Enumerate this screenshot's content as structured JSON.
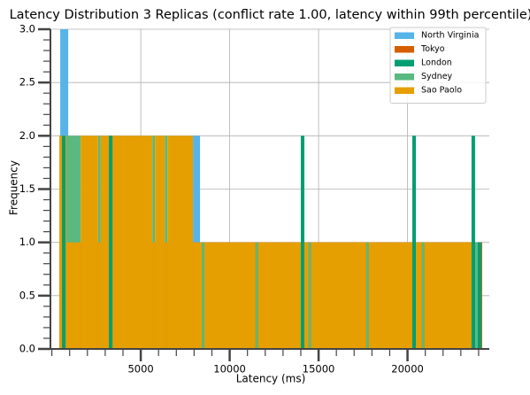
{
  "chart_data": {
    "type": "histogram",
    "title": "Latency Distribution 3 Replicas (conflict rate 1.00, latency within 99th percentile)",
    "x_label": "Latency (ms)",
    "y_label": "Frequency",
    "xlim": [
      -80,
      24600
    ],
    "ylim": [
      0,
      3
    ],
    "xticks": [
      5000,
      10000,
      15000,
      20000
    ],
    "yticks": [
      {
        "value": 0,
        "label": "0.0"
      },
      {
        "value": 0.5,
        "label": "0.5"
      },
      {
        "value": 1,
        "label": "1.0"
      },
      {
        "value": 1.5,
        "label": "1.5"
      },
      {
        "value": 2,
        "label": "2.0"
      },
      {
        "value": 2.5,
        "label": "2.5"
      },
      {
        "value": 3,
        "label": "3.0"
      }
    ],
    "grid": true,
    "legend": "upper right",
    "series": [
      {
        "name": "North Virginia",
        "color": "#56b4e9",
        "bins": [
          470,
          920,
          7935,
          8330
        ],
        "counts": [
          3,
          0,
          2
        ]
      },
      {
        "name": "Tokyo",
        "color": "#d55e00",
        "bins": [
          420,
          24200
        ],
        "counts": [
          1
        ]
      },
      {
        "name": "London",
        "color": "#009e73",
        "bins": [
          570,
          770,
          3210,
          3410,
          14000,
          14200,
          20270,
          20470,
          23600,
          23800,
          23955,
          24155
        ],
        "counts": [
          2,
          0,
          2,
          0,
          2,
          0,
          2,
          0,
          2,
          0,
          1
        ]
      },
      {
        "name": "Sydney",
        "color": "#5ab97f",
        "bins": [
          820,
          1620,
          2600,
          2750,
          5650,
          5800,
          6350,
          6500,
          8430,
          8580,
          11450,
          11600,
          14430,
          14580,
          17670,
          17820,
          20800,
          20950,
          23800,
          23955
        ],
        "counts": [
          2,
          0,
          2,
          0,
          2,
          0,
          2,
          0,
          1,
          0,
          1,
          0,
          1,
          0,
          1,
          0,
          1,
          0,
          1
        ]
      },
      {
        "name": "Sao Paolo",
        "color": "#e69f00",
        "bins": [
          420,
          820,
          1620,
          2600,
          2750,
          5650,
          5800,
          6350,
          6500,
          7935,
          8430,
          8580,
          11450,
          11600,
          14430,
          14580,
          17670,
          17820,
          20800,
          20950,
          23800,
          23955
        ],
        "counts": [
          2,
          1,
          2,
          1,
          2,
          1,
          2,
          1,
          2,
          1,
          0,
          1,
          0,
          1,
          0,
          1,
          0,
          1,
          0,
          1,
          0
        ]
      }
    ]
  }
}
